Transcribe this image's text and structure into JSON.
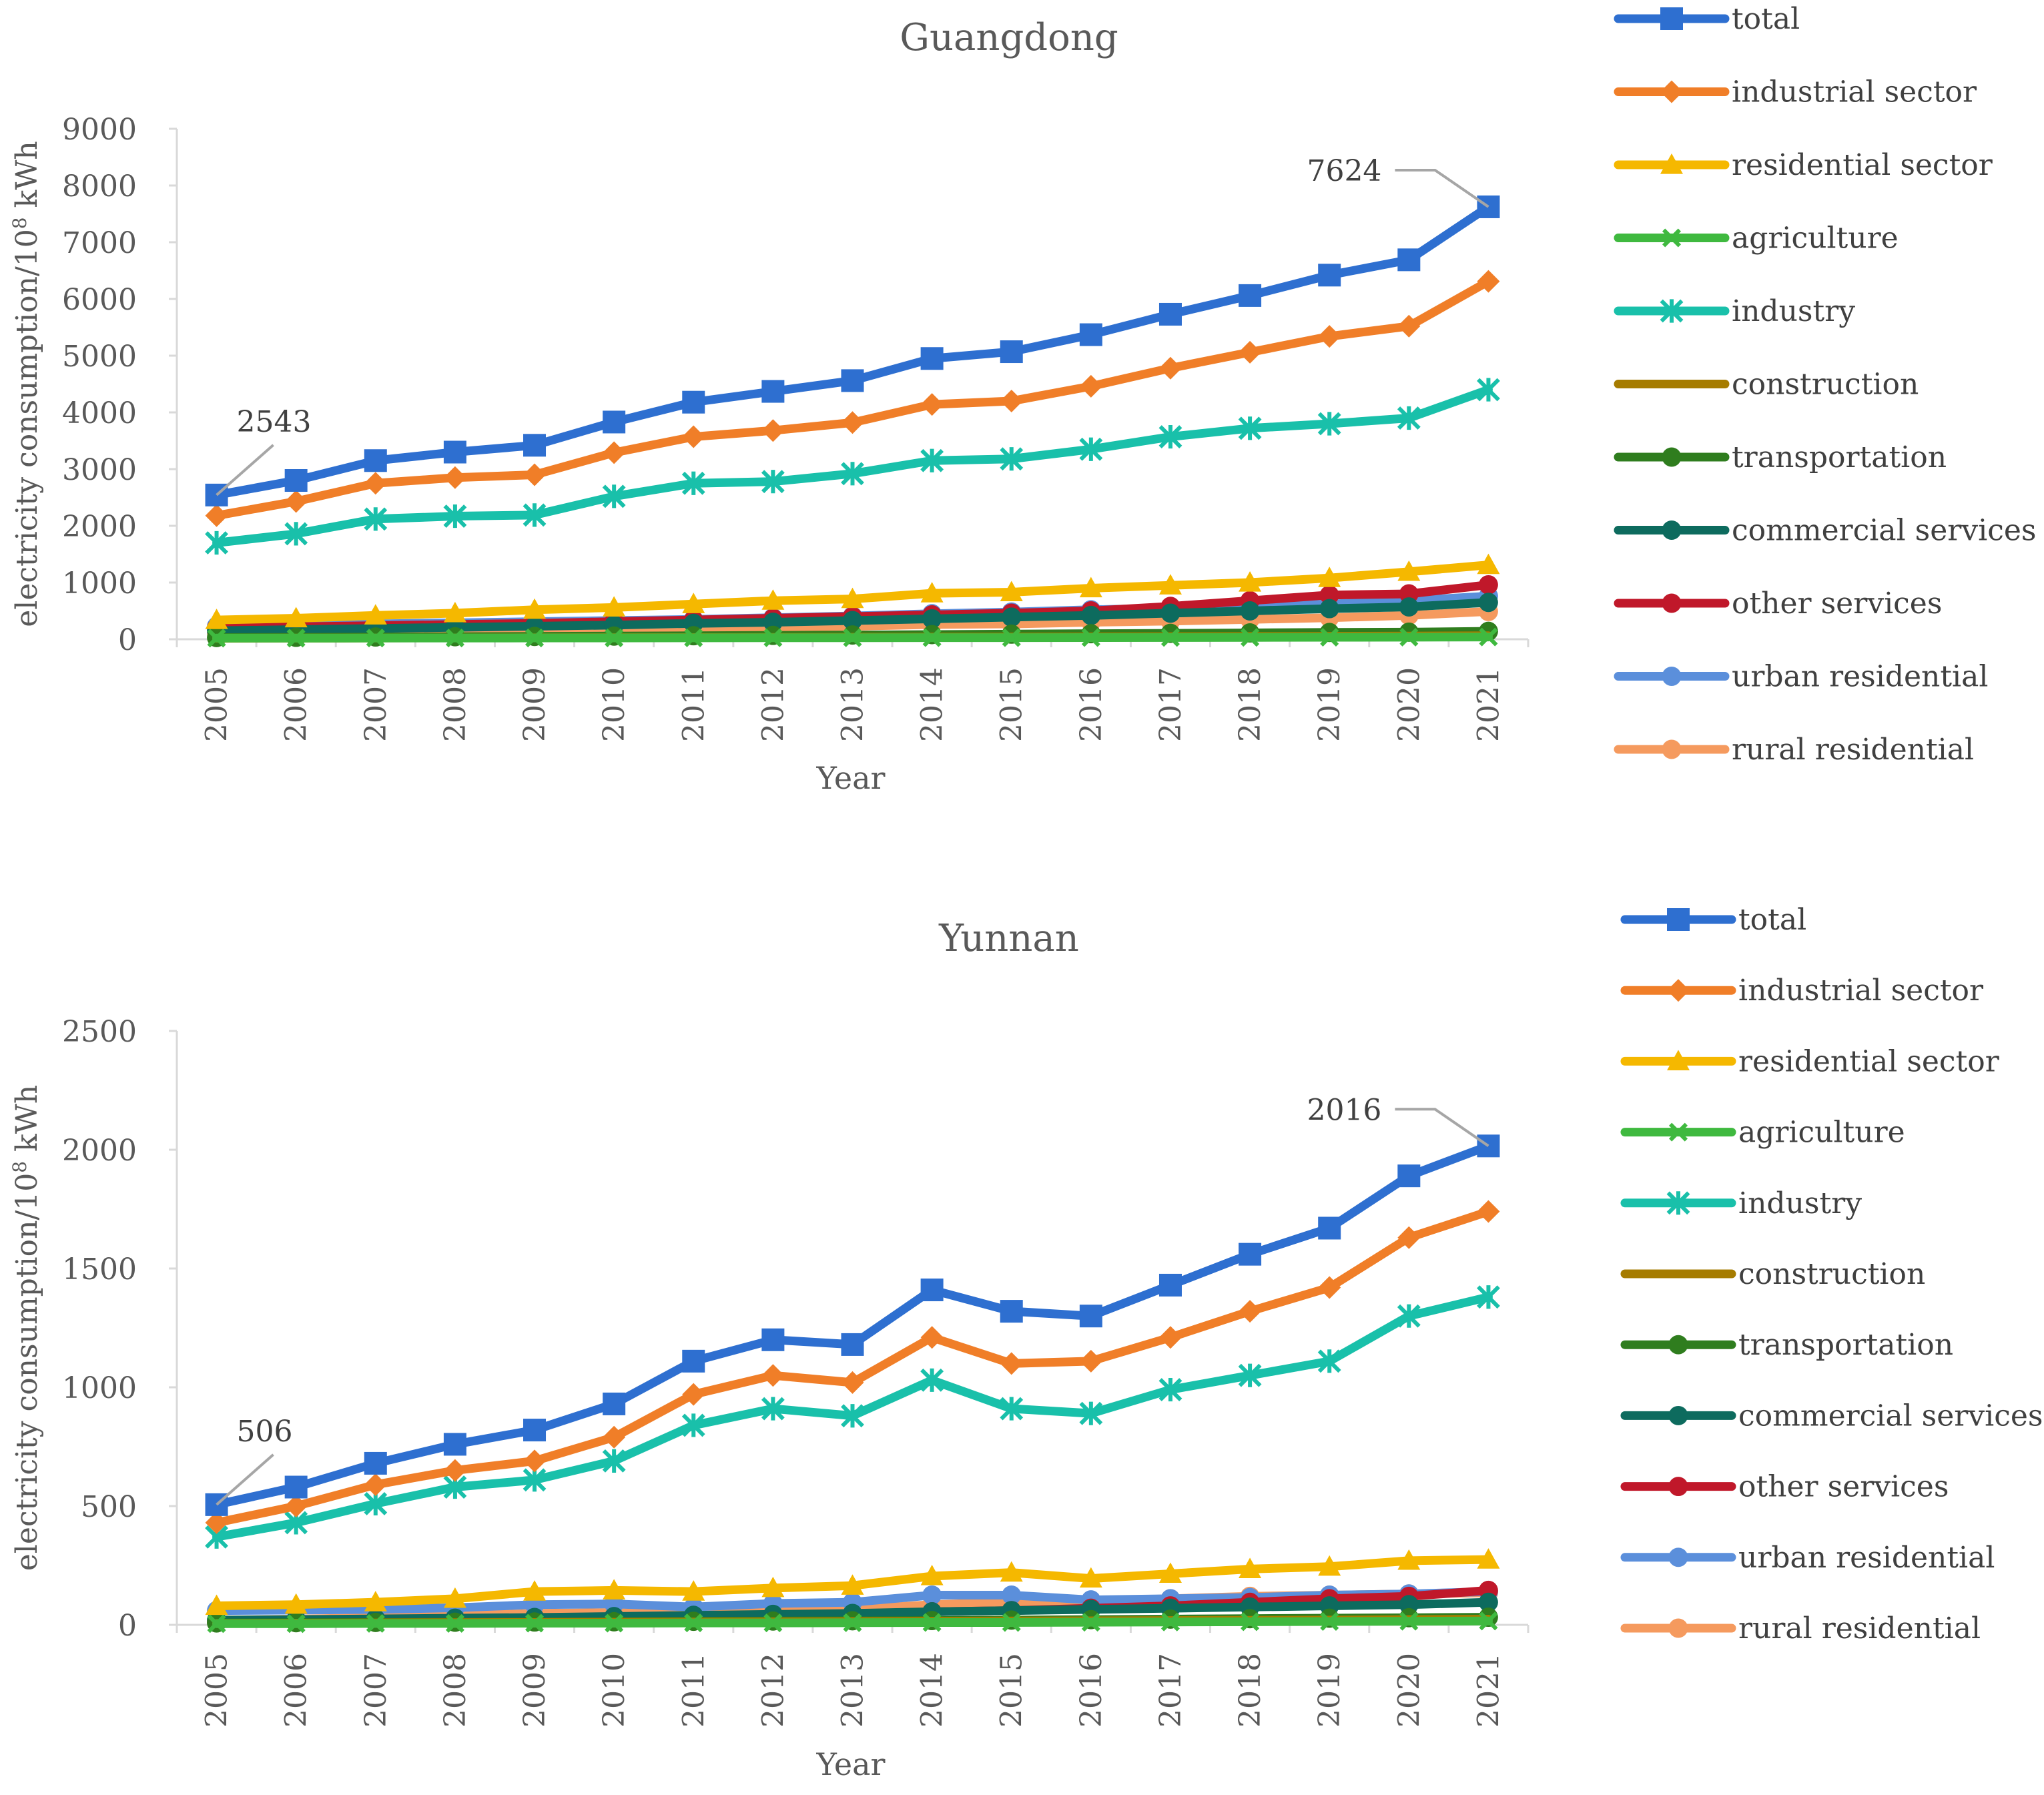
{
  "chart_data": [
    {
      "type": "line",
      "title": "Guangdong",
      "xlabel": "Year",
      "ylabel": "electricity consumption/10",
      "ylabel_sup": "8",
      "ylabel_unit": " kWh",
      "ylim": [
        0,
        9000
      ],
      "yticks": [
        0,
        1000,
        2000,
        3000,
        4000,
        5000,
        6000,
        7000,
        8000,
        9000
      ],
      "categories": [
        "2005",
        "2006",
        "2007",
        "2008",
        "2009",
        "2010",
        "2011",
        "2012",
        "2013",
        "2014",
        "2015",
        "2016",
        "2017",
        "2018",
        "2019",
        "2020",
        "2021"
      ],
      "annotations": [
        {
          "text": "2543",
          "series": "total",
          "index": 0
        },
        {
          "text": "7624",
          "series": "total",
          "index": 16
        }
      ],
      "series": [
        {
          "name": "total",
          "color": "#2E6FD0",
          "marker": "square",
          "values": [
            2543,
            2800,
            3150,
            3300,
            3420,
            3830,
            4180,
            4370,
            4560,
            4950,
            5070,
            5370,
            5730,
            6060,
            6420,
            6690,
            7624
          ]
        },
        {
          "name": "industrial sector",
          "color": "#F07E28",
          "marker": "diamond",
          "values": [
            2180,
            2430,
            2750,
            2850,
            2900,
            3290,
            3570,
            3680,
            3820,
            4140,
            4200,
            4460,
            4780,
            5060,
            5340,
            5520,
            6310
          ]
        },
        {
          "name": "residential sector",
          "color": "#F5B800",
          "marker": "triangle",
          "values": [
            340,
            370,
            420,
            460,
            520,
            560,
            620,
            680,
            710,
            810,
            830,
            900,
            950,
            1000,
            1080,
            1190,
            1310
          ]
        },
        {
          "name": "agriculture",
          "color": "#3FB93F",
          "marker": "x",
          "values": [
            20,
            20,
            22,
            22,
            23,
            24,
            25,
            26,
            26,
            28,
            28,
            30,
            31,
            33,
            35,
            37,
            40
          ]
        },
        {
          "name": "industry",
          "color": "#19C0AA",
          "marker": "asterisk",
          "values": [
            1700,
            1860,
            2120,
            2170,
            2190,
            2520,
            2750,
            2780,
            2920,
            3150,
            3180,
            3350,
            3570,
            3720,
            3800,
            3900,
            4400
          ]
        },
        {
          "name": "construction",
          "color": "#A67C00",
          "marker": "none",
          "values": [
            18,
            20,
            22,
            24,
            26,
            28,
            30,
            33,
            35,
            38,
            40,
            42,
            45,
            48,
            52,
            56,
            62
          ]
        },
        {
          "name": "transportation",
          "color": "#2F7D1E",
          "marker": "circle",
          "values": [
            30,
            34,
            40,
            45,
            50,
            56,
            62,
            68,
            75,
            82,
            90,
            98,
            105,
            112,
            120,
            125,
            140
          ]
        },
        {
          "name": "commercial services",
          "color": "#0D6B5E",
          "marker": "circle",
          "values": [
            150,
            170,
            190,
            210,
            230,
            250,
            280,
            300,
            330,
            360,
            390,
            420,
            460,
            500,
            540,
            570,
            650
          ]
        },
        {
          "name": "other services",
          "color": "#C0182A",
          "marker": "circle",
          "values": [
            200,
            220,
            240,
            260,
            280,
            310,
            340,
            370,
            400,
            430,
            460,
            500,
            580,
            680,
            780,
            800,
            960
          ]
        },
        {
          "name": "urban residential",
          "color": "#5B8FDB",
          "marker": "circle",
          "values": [
            230,
            250,
            270,
            290,
            310,
            330,
            350,
            380,
            410,
            450,
            480,
            520,
            550,
            580,
            620,
            680,
            760
          ]
        },
        {
          "name": "rural residential",
          "color": "#F59A5E",
          "marker": "circle",
          "values": [
            110,
            120,
            135,
            145,
            155,
            170,
            190,
            210,
            230,
            260,
            270,
            300,
            320,
            350,
            380,
            420,
            490
          ]
        }
      ]
    },
    {
      "type": "line",
      "title": "Yunnan",
      "xlabel": "Year",
      "ylabel": "electricity consumption/10",
      "ylabel_sup": "8",
      "ylabel_unit": " kWh",
      "ylim": [
        0,
        2500
      ],
      "yticks": [
        0,
        500,
        1000,
        1500,
        2000,
        2500
      ],
      "categories": [
        "2005",
        "2006",
        "2007",
        "2008",
        "2009",
        "2010",
        "2011",
        "2012",
        "2013",
        "2014",
        "2015",
        "2016",
        "2017",
        "2018",
        "2019",
        "2020",
        "2021"
      ],
      "annotations": [
        {
          "text": "506",
          "series": "total",
          "index": 0
        },
        {
          "text": "2016",
          "series": "total",
          "index": 16
        }
      ],
      "series": [
        {
          "name": "total",
          "color": "#2E6FD0",
          "marker": "square",
          "values": [
            506,
            580,
            680,
            760,
            820,
            930,
            1110,
            1200,
            1180,
            1410,
            1320,
            1300,
            1430,
            1560,
            1670,
            1890,
            2016
          ]
        },
        {
          "name": "industrial sector",
          "color": "#F07E28",
          "marker": "diamond",
          "values": [
            430,
            500,
            590,
            650,
            690,
            790,
            970,
            1050,
            1020,
            1210,
            1100,
            1110,
            1210,
            1320,
            1420,
            1630,
            1740
          ]
        },
        {
          "name": "residential sector",
          "color": "#F5B800",
          "marker": "triangle",
          "values": [
            80,
            85,
            95,
            110,
            140,
            145,
            140,
            155,
            165,
            205,
            220,
            195,
            215,
            235,
            245,
            270,
            275
          ]
        },
        {
          "name": "agriculture",
          "color": "#3FB93F",
          "marker": "x",
          "values": [
            5,
            5,
            6,
            6,
            7,
            7,
            8,
            8,
            9,
            10,
            10,
            11,
            12,
            13,
            14,
            15,
            16
          ]
        },
        {
          "name": "industry",
          "color": "#19C0AA",
          "marker": "asterisk",
          "values": [
            370,
            430,
            510,
            580,
            610,
            690,
            840,
            910,
            880,
            1030,
            910,
            890,
            990,
            1050,
            1110,
            1300,
            1380
          ]
        },
        {
          "name": "construction",
          "color": "#A67C00",
          "marker": "none",
          "values": [
            6,
            7,
            8,
            9,
            10,
            11,
            12,
            13,
            14,
            15,
            16,
            17,
            18,
            19,
            20,
            22,
            24
          ]
        },
        {
          "name": "transportation",
          "color": "#2F7D1E",
          "marker": "circle",
          "values": [
            8,
            9,
            10,
            11,
            12,
            13,
            15,
            16,
            17,
            18,
            20,
            22,
            24,
            26,
            28,
            30,
            32
          ]
        },
        {
          "name": "commercial services",
          "color": "#0D6B5E",
          "marker": "circle",
          "values": [
            20,
            22,
            25,
            28,
            31,
            35,
            40,
            44,
            48,
            55,
            60,
            65,
            70,
            75,
            80,
            85,
            95
          ]
        },
        {
          "name": "other services",
          "color": "#C0182A",
          "marker": "circle",
          "values": [
            10,
            12,
            14,
            16,
            18,
            22,
            30,
            35,
            40,
            55,
            60,
            70,
            80,
            95,
            110,
            120,
            145
          ]
        },
        {
          "name": "urban residential",
          "color": "#5B8FDB",
          "marker": "circle",
          "values": [
            60,
            62,
            65,
            72,
            85,
            88,
            75,
            90,
            95,
            125,
            125,
            105,
            110,
            115,
            125,
            130,
            140
          ]
        },
        {
          "name": "rural residential",
          "color": "#F59A5E",
          "marker": "circle",
          "values": [
            20,
            24,
            30,
            38,
            48,
            52,
            55,
            58,
            65,
            85,
            95,
            100,
            110,
            120,
            125,
            130,
            135
          ]
        }
      ]
    }
  ]
}
